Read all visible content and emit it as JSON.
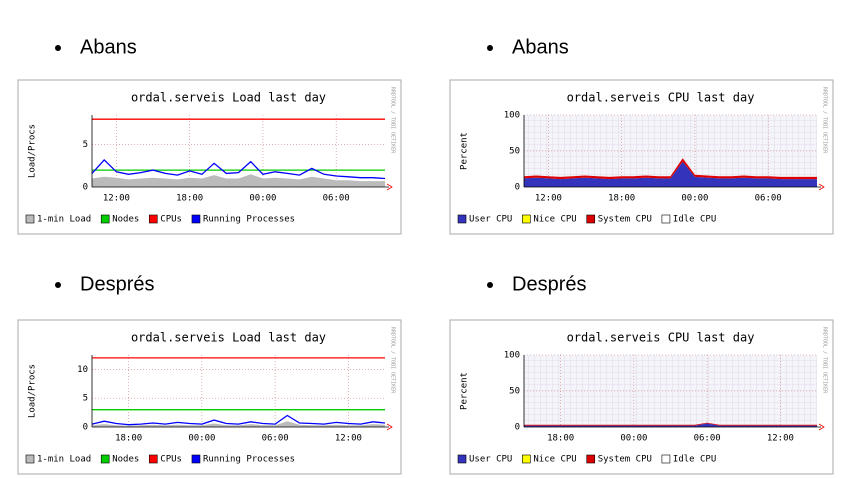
{
  "headings": [
    "Abans",
    "Abans",
    "Després",
    "Després"
  ],
  "chart_data": [
    {
      "type": "line",
      "title": "ordal.serveis Load last day",
      "ylabel": "Load/Procs",
      "watermark": "RRDTOOL / TOBI OETIKER",
      "x": [
        0,
        1,
        2,
        3,
        4,
        5,
        6,
        7,
        8,
        9,
        10,
        11,
        12,
        13,
        14,
        15,
        16,
        17,
        18,
        19,
        20,
        21,
        22,
        23,
        24
      ],
      "xlim": [
        0,
        24
      ],
      "xticks": [
        {
          "value": 2,
          "label": "12:00"
        },
        {
          "value": 8,
          "label": "18:00"
        },
        {
          "value": 14,
          "label": "00:00"
        },
        {
          "value": 20,
          "label": "06:00"
        }
      ],
      "ylim": [
        0,
        8.5
      ],
      "yticks": [
        0,
        5
      ],
      "grid": true,
      "stacked": false,
      "series": [
        {
          "name": "1-min Load",
          "color": "#bbbbbb",
          "style": "area",
          "values": [
            1.0,
            1.2,
            1.1,
            0.9,
            1.0,
            1.1,
            1.0,
            0.9,
            1.1,
            1.0,
            1.4,
            1.0,
            1.0,
            1.5,
            1.0,
            1.1,
            1.0,
            0.9,
            1.2,
            1.0,
            0.8,
            0.8,
            0.7,
            0.7,
            0.7
          ]
        },
        {
          "name": "Nodes",
          "color": "#00cc00",
          "style": "line",
          "values": [
            2,
            2,
            2,
            2,
            2,
            2,
            2,
            2,
            2,
            2,
            2,
            2,
            2,
            2,
            2,
            2,
            2,
            2,
            2,
            2,
            2,
            2,
            2,
            2,
            2
          ]
        },
        {
          "name": "CPUs",
          "color": "#ff0000",
          "style": "line",
          "values": [
            8,
            8,
            8,
            8,
            8,
            8,
            8,
            8,
            8,
            8,
            8,
            8,
            8,
            8,
            8,
            8,
            8,
            8,
            8,
            8,
            8,
            8,
            8,
            8,
            8
          ]
        },
        {
          "name": "Running Processes",
          "color": "#0000ff",
          "style": "line",
          "values": [
            1.6,
            3.2,
            1.8,
            1.5,
            1.7,
            2.0,
            1.6,
            1.4,
            1.9,
            1.5,
            2.8,
            1.6,
            1.7,
            3.0,
            1.5,
            1.8,
            1.6,
            1.4,
            2.2,
            1.5,
            1.3,
            1.2,
            1.1,
            1.1,
            1.0
          ]
        }
      ]
    },
    {
      "type": "line",
      "title": "ordal.serveis CPU last day",
      "ylabel": "Percent",
      "watermark": "RRDTOOL / TOBI OETIKER",
      "x": [
        0,
        1,
        2,
        3,
        4,
        5,
        6,
        7,
        8,
        9,
        10,
        11,
        12,
        13,
        14,
        15,
        16,
        17,
        18,
        19,
        20,
        21,
        22,
        23,
        24
      ],
      "xlim": [
        0,
        24
      ],
      "xticks": [
        {
          "value": 2,
          "label": "12:00"
        },
        {
          "value": 8,
          "label": "18:00"
        },
        {
          "value": 14,
          "label": "00:00"
        },
        {
          "value": 20,
          "label": "06:00"
        }
      ],
      "ylim": [
        0,
        100
      ],
      "yticks": [
        0,
        50,
        100
      ],
      "grid": true,
      "stacked": true,
      "series": [
        {
          "name": "User CPU",
          "color": "#3333bb",
          "style": "area",
          "values": [
            12,
            13,
            12,
            11,
            12,
            13,
            12,
            11,
            12,
            12,
            13,
            12,
            12,
            35,
            14,
            13,
            12,
            12,
            13,
            12,
            12,
            11,
            11,
            11,
            11
          ]
        },
        {
          "name": "Nice CPU",
          "color": "#ffff00"
        },
        {
          "name": "System CPU",
          "color": "#dd0000",
          "style": "area",
          "values": [
            3,
            3,
            3,
            3,
            3,
            3,
            3,
            3,
            3,
            3,
            3,
            3,
            3,
            5,
            3,
            3,
            3,
            3,
            3,
            3,
            3,
            3,
            3,
            3,
            3
          ]
        },
        {
          "name": "Idle CPU",
          "color": "#ffffff"
        }
      ]
    },
    {
      "type": "line",
      "title": "ordal.serveis Load last day",
      "ylabel": "Load/Procs",
      "watermark": "RRDTOOL / TOBI OETIKER",
      "x": [
        0,
        1,
        2,
        3,
        4,
        5,
        6,
        7,
        8,
        9,
        10,
        11,
        12,
        13,
        14,
        15,
        16,
        17,
        18,
        19,
        20,
        21,
        22,
        23,
        24
      ],
      "xlim": [
        0,
        24
      ],
      "xticks": [
        {
          "value": 3,
          "label": "18:00"
        },
        {
          "value": 9,
          "label": "00:00"
        },
        {
          "value": 15,
          "label": "06:00"
        },
        {
          "value": 21,
          "label": "12:00"
        }
      ],
      "ylim": [
        0,
        12.5
      ],
      "yticks": [
        0,
        5,
        10
      ],
      "grid": true,
      "stacked": false,
      "series": [
        {
          "name": "1-min Load",
          "color": "#bbbbbb",
          "style": "area",
          "values": [
            0.3,
            0.5,
            0.3,
            0.2,
            0.3,
            0.4,
            0.3,
            0.4,
            0.3,
            0.3,
            0.6,
            0.3,
            0.3,
            0.5,
            0.3,
            0.3,
            1.0,
            0.4,
            0.3,
            0.3,
            0.4,
            0.3,
            0.3,
            0.5,
            0.4
          ]
        },
        {
          "name": "Nodes",
          "color": "#00cc00",
          "style": "line",
          "values": [
            3,
            3,
            3,
            3,
            3,
            3,
            3,
            3,
            3,
            3,
            3,
            3,
            3,
            3,
            3,
            3,
            3,
            3,
            3,
            3,
            3,
            3,
            3,
            3,
            3
          ]
        },
        {
          "name": "CPUs",
          "color": "#ff0000",
          "style": "line",
          "values": [
            12,
            12,
            12,
            12,
            12,
            12,
            12,
            12,
            12,
            12,
            12,
            12,
            12,
            12,
            12,
            12,
            12,
            12,
            12,
            12,
            12,
            12,
            12,
            12,
            12
          ]
        },
        {
          "name": "Running Processes",
          "color": "#0000ff",
          "style": "line",
          "values": [
            0.5,
            1.0,
            0.6,
            0.4,
            0.5,
            0.7,
            0.5,
            0.8,
            0.6,
            0.5,
            1.2,
            0.6,
            0.5,
            0.9,
            0.6,
            0.5,
            2.0,
            0.7,
            0.6,
            0.5,
            0.8,
            0.6,
            0.5,
            0.9,
            0.7
          ]
        }
      ]
    },
    {
      "type": "line",
      "title": "ordal.serveis CPU last day",
      "ylabel": "Percent",
      "watermark": "RRDTOOL / TOBI OETIKER",
      "x": [
        0,
        1,
        2,
        3,
        4,
        5,
        6,
        7,
        8,
        9,
        10,
        11,
        12,
        13,
        14,
        15,
        16,
        17,
        18,
        19,
        20,
        21,
        22,
        23,
        24
      ],
      "xlim": [
        0,
        24
      ],
      "xticks": [
        {
          "value": 3,
          "label": "18:00"
        },
        {
          "value": 9,
          "label": "00:00"
        },
        {
          "value": 15,
          "label": "06:00"
        },
        {
          "value": 21,
          "label": "12:00"
        }
      ],
      "ylim": [
        0,
        100
      ],
      "yticks": [
        0,
        50,
        100
      ],
      "grid": true,
      "stacked": true,
      "series": [
        {
          "name": "User CPU",
          "color": "#3333bb",
          "style": "area",
          "values": [
            2,
            2,
            2,
            2,
            2,
            2,
            2,
            2,
            2,
            2,
            2,
            2,
            2,
            2,
            2,
            5,
            2,
            2,
            2,
            2,
            2,
            2,
            2,
            2,
            2
          ]
        },
        {
          "name": "Nice CPU",
          "color": "#ffff00"
        },
        {
          "name": "System CPU",
          "color": "#dd0000",
          "style": "area",
          "values": [
            1,
            1,
            1,
            1,
            1,
            1,
            1,
            1,
            1,
            1,
            1,
            1,
            1,
            1,
            1,
            1,
            1,
            1,
            1,
            1,
            1,
            1,
            1,
            1,
            1
          ]
        },
        {
          "name": "Idle CPU",
          "color": "#ffffff"
        }
      ]
    }
  ]
}
